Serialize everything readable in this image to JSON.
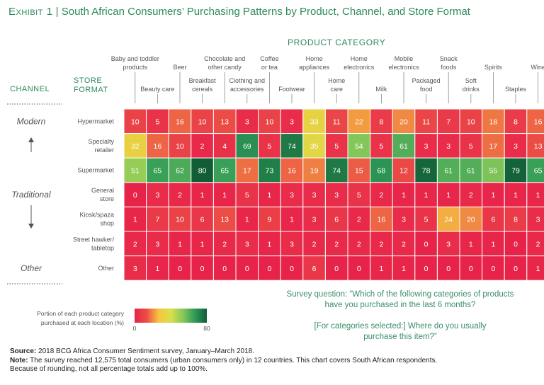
{
  "header": {
    "exhibit": "Exhibit 1",
    "separator": "|",
    "title": "South African Consumers’ Purchasing Patterns by Product, Channel, and Store Format"
  },
  "chart_data": {
    "type": "heatmap",
    "title": "South African Consumers’ Purchasing Patterns by Product, Channel, and Store Format",
    "x_axis_title": "PRODUCT CATEGORY",
    "channel_header": "CHANNEL",
    "store_format_header": "STORE FORMAT",
    "columns": [
      [
        "Baby and toddler",
        "products"
      ],
      [
        "Beauty care"
      ],
      [
        "Beer"
      ],
      [
        "Breakfast",
        "cereals"
      ],
      [
        "Chocolate and",
        "other candy"
      ],
      [
        "Clothing and",
        "accessories"
      ],
      [
        "Coffee",
        "or tea"
      ],
      [
        "Footwear"
      ],
      [
        "Home",
        "appliances"
      ],
      [
        "Home",
        "care"
      ],
      [
        "Home",
        "electronics"
      ],
      [
        "Milk"
      ],
      [
        "Mobile",
        "electronics"
      ],
      [
        "Packaged",
        "food"
      ],
      [
        "Snack",
        "foods"
      ],
      [
        "Soft",
        "drinks"
      ],
      [
        "Spirits"
      ],
      [
        "Staples"
      ],
      [
        "Wine"
      ]
    ],
    "rows": [
      [
        "Hypermarket"
      ],
      [
        "Specialty",
        "retailer"
      ],
      [
        "Supermarket"
      ],
      [
        "General",
        "store"
      ],
      [
        "Kiosk/spaza",
        "shop"
      ],
      [
        "Street hawker/",
        "tabletop"
      ],
      [
        "Other"
      ]
    ],
    "channels": [
      "Modern",
      "Traditional",
      "Other"
    ],
    "values": [
      [
        10,
        5,
        16,
        10,
        13,
        3,
        10,
        3,
        33,
        11,
        22,
        8,
        20,
        11,
        7,
        10,
        18,
        8,
        16
      ],
      [
        32,
        16,
        10,
        2,
        4,
        69,
        5,
        74,
        35,
        5,
        54,
        5,
        61,
        3,
        3,
        5,
        17,
        3,
        13
      ],
      [
        51,
        65,
        62,
        80,
        65,
        17,
        73,
        16,
        19,
        74,
        15,
        68,
        12,
        78,
        61,
        61,
        55,
        79,
        65
      ],
      [
        0,
        3,
        2,
        1,
        1,
        5,
        1,
        3,
        3,
        3,
        5,
        2,
        1,
        1,
        1,
        2,
        1,
        1,
        1
      ],
      [
        1,
        7,
        10,
        6,
        13,
        1,
        9,
        1,
        3,
        6,
        2,
        16,
        3,
        5,
        24,
        20,
        6,
        8,
        3
      ],
      [
        2,
        3,
        1,
        1,
        2,
        3,
        1,
        3,
        2,
        2,
        2,
        2,
        2,
        0,
        3,
        1,
        1,
        0,
        2
      ],
      [
        3,
        1,
        0,
        0,
        0,
        0,
        0,
        0,
        6,
        0,
        0,
        1,
        1,
        0,
        0,
        0,
        0,
        0,
        1
      ]
    ],
    "color_scale": {
      "min": 0,
      "max": 80,
      "stops": [
        "#e8234a",
        "#eb4d46",
        "#f5c53f",
        "#d8e04a",
        "#88c95a",
        "#2e9a58",
        "#115e36"
      ]
    },
    "legend": {
      "label_line1": "Portion of each product category",
      "label_line2": "purchased at each location (%)",
      "min_label": "0",
      "max_label": "80"
    },
    "annotation": {
      "lines": [
        "Survey question: “Which of the following categories of products",
        "have you purchased in the last 6 months?",
        "",
        "[For categories selected:] Where do you usually",
        "purchase this item?”"
      ]
    }
  },
  "source": {
    "source_label": "Source:",
    "source_text": "2018 BCG Africa Consumer Sentiment survey, January–March 2018.",
    "note_label": "Note:",
    "note_text": "The survey reached 12,575 total consumers (urban consumers only) in 12 countries. This chart covers South African respondents.",
    "note_text2": "Because of rounding, not all percentage totals add up to 100%."
  },
  "colors": {
    "accent": "#2e8a5c",
    "header_text": "#2e8a5c",
    "label_text": "#555555",
    "annotation_text": "#3a8f6a"
  }
}
